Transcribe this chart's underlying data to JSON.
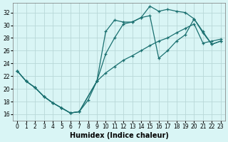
{
  "xlabel": "Humidex (Indice chaleur)",
  "bg_color": "#d9f5f5",
  "grid_color": "#b8d8d8",
  "line_color": "#1a7070",
  "xlim": [
    -0.5,
    23.5
  ],
  "ylim": [
    15.0,
    33.5
  ],
  "yticks": [
    16,
    18,
    20,
    22,
    24,
    26,
    28,
    30,
    32
  ],
  "xticks": [
    0,
    1,
    2,
    3,
    4,
    5,
    6,
    7,
    8,
    9,
    10,
    11,
    12,
    13,
    14,
    15,
    16,
    17,
    18,
    19,
    20,
    21,
    22,
    23
  ],
  "line1_x": [
    0,
    1,
    2,
    3,
    4,
    5,
    6,
    7,
    8,
    9,
    10,
    11,
    12,
    13,
    14,
    15,
    16,
    17,
    18,
    19,
    20,
    21,
    22,
    23
  ],
  "line1_y": [
    22.8,
    21.2,
    20.2,
    18.8,
    17.8,
    17.0,
    16.2,
    16.4,
    18.2,
    21.2,
    29.0,
    30.8,
    30.5,
    30.5,
    31.2,
    33.0,
    32.2,
    32.5,
    32.2,
    32.0,
    31.0,
    28.8,
    27.0,
    27.5
  ],
  "line2_x": [
    0,
    1,
    2,
    3,
    4,
    5,
    6,
    7,
    9,
    10,
    11,
    12,
    13,
    14,
    15,
    16,
    17,
    18,
    19,
    20,
    21,
    22,
    23
  ],
  "line2_y": [
    22.8,
    21.2,
    20.2,
    18.8,
    17.8,
    17.0,
    16.2,
    16.4,
    21.2,
    25.5,
    28.0,
    30.2,
    30.5,
    31.2,
    31.5,
    24.8,
    26.0,
    27.5,
    28.5,
    31.0,
    29.0,
    27.0,
    27.5
  ],
  "line3_x": [
    0,
    1,
    2,
    3,
    4,
    5,
    6,
    7,
    9,
    10,
    11,
    12,
    13,
    14,
    15,
    16,
    17,
    18,
    19,
    20,
    21,
    22,
    23
  ],
  "line3_y": [
    22.8,
    21.2,
    20.2,
    18.8,
    17.8,
    17.0,
    16.2,
    16.4,
    21.2,
    22.5,
    23.5,
    24.5,
    25.2,
    26.0,
    26.8,
    27.5,
    28.0,
    28.8,
    29.5,
    30.2,
    27.2,
    27.5,
    27.8
  ]
}
